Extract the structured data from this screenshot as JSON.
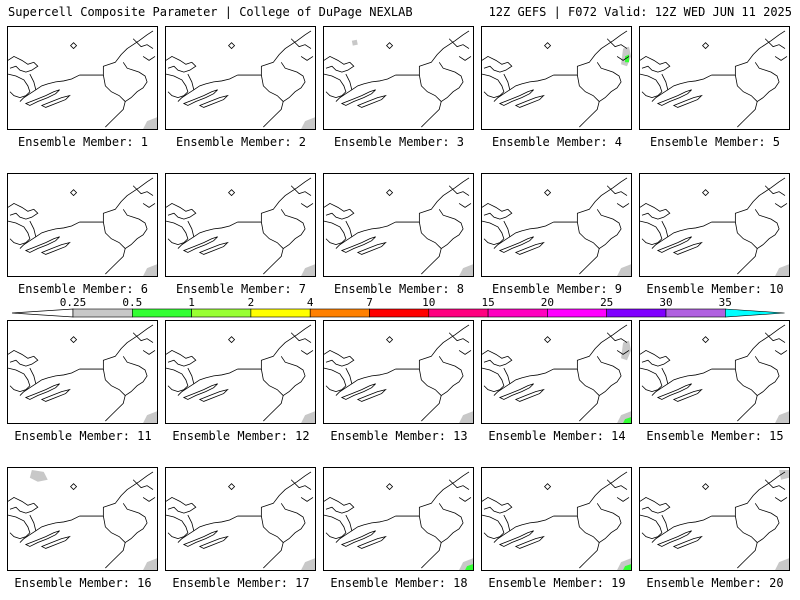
{
  "header": {
    "title": "Supercell Composite Parameter | College of DuPage NEXLAB",
    "run_info": "12Z GEFS | F072 Valid: 12Z WED JUN 11 2025"
  },
  "members": [
    {
      "label": "Ensemble Member: 1",
      "shading": [
        {
          "region": "southeast",
          "level": 0.5
        },
        {
          "region": "southeast",
          "level": 0.25
        }
      ]
    },
    {
      "label": "Ensemble Member: 2",
      "shading": [
        {
          "region": "southeast",
          "level": 0.5
        },
        {
          "region": "southeast",
          "level": 0.25
        }
      ]
    },
    {
      "label": "Ensemble Member: 3",
      "shading": [
        {
          "region": "west-north",
          "level": 0.25
        }
      ]
    },
    {
      "label": "Ensemble Member: 4",
      "shading": [
        {
          "region": "maritimes",
          "level": 0.25
        },
        {
          "region": "maritimes",
          "level": 0.5
        }
      ]
    },
    {
      "label": "Ensemble Member: 5",
      "shading": []
    },
    {
      "label": "Ensemble Member: 6",
      "shading": [
        {
          "region": "southeast",
          "level": 0.25
        }
      ]
    },
    {
      "label": "Ensemble Member: 7",
      "shading": [
        {
          "region": "southeast",
          "level": 0.25
        }
      ]
    },
    {
      "label": "Ensemble Member: 8",
      "shading": [
        {
          "region": "southeast",
          "level": 0.25
        }
      ]
    },
    {
      "label": "Ensemble Member: 9",
      "shading": [
        {
          "region": "southeast",
          "level": 0.25
        }
      ]
    },
    {
      "label": "Ensemble Member: 10",
      "shading": [
        {
          "region": "southeast",
          "level": 0.25
        }
      ]
    },
    {
      "label": "Ensemble Member: 11",
      "shading": [
        {
          "region": "southeast",
          "level": 0.25
        }
      ]
    },
    {
      "label": "Ensemble Member: 12",
      "shading": [
        {
          "region": "southeast",
          "level": 0.25
        }
      ]
    },
    {
      "label": "Ensemble Member: 13",
      "shading": [
        {
          "region": "southeast",
          "level": 0.25
        }
      ]
    },
    {
      "label": "Ensemble Member: 14",
      "shading": [
        {
          "region": "southeast",
          "level": 0.25
        },
        {
          "region": "southeast",
          "level": 0.5
        },
        {
          "region": "maritimes",
          "level": 0.25
        }
      ]
    },
    {
      "label": "Ensemble Member: 15",
      "shading": [
        {
          "region": "southeast",
          "level": 0.25
        }
      ]
    },
    {
      "label": "Ensemble Member: 16",
      "shading": [
        {
          "region": "northwest",
          "level": 0.25
        },
        {
          "region": "southeast",
          "level": 0.25
        }
      ]
    },
    {
      "label": "Ensemble Member: 17",
      "shading": [
        {
          "region": "southeast",
          "level": 0.25
        }
      ]
    },
    {
      "label": "Ensemble Member: 18",
      "shading": [
        {
          "region": "southeast",
          "level": 0.25
        },
        {
          "region": "southeast",
          "level": 0.5
        }
      ]
    },
    {
      "label": "Ensemble Member: 19",
      "shading": [
        {
          "region": "southeast",
          "level": 0.25
        },
        {
          "region": "southeast",
          "level": 0.5
        }
      ]
    },
    {
      "label": "Ensemble Member: 20",
      "shading": [
        {
          "region": "northeast",
          "level": 0.25
        },
        {
          "region": "southeast",
          "level": 0.25
        }
      ]
    }
  ],
  "legend": {
    "levels": [
      {
        "label": "0.25",
        "color": "#c8c8c8"
      },
      {
        "label": "0.5",
        "color": "#33ff33"
      },
      {
        "label": "1",
        "color": "#99ff33"
      },
      {
        "label": "2",
        "color": "#ffff00"
      },
      {
        "label": "4",
        "color": "#ff8000"
      },
      {
        "label": "7",
        "color": "#ff0000"
      },
      {
        "label": "10",
        "color": "#ff0080"
      },
      {
        "label": "15",
        "color": "#ff00c0"
      },
      {
        "label": "20",
        "color": "#ff00ff"
      },
      {
        "label": "25",
        "color": "#8000ff"
      },
      {
        "label": "30",
        "color": "#b060e0"
      },
      {
        "label": "35",
        "color": "#00ffff"
      }
    ]
  }
}
